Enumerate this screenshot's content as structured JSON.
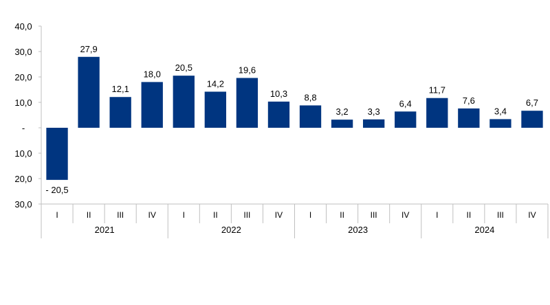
{
  "chart_data": {
    "type": "bar",
    "bar_color": "#003580",
    "ylim": [
      -30,
      40
    ],
    "yticks": [
      {
        "value": 40,
        "label": "40,0"
      },
      {
        "value": 30,
        "label": "30,0"
      },
      {
        "value": 20,
        "label": "20,0"
      },
      {
        "value": 10,
        "label": "10,0"
      },
      {
        "value": 0,
        "label": "-"
      },
      {
        "value": -10,
        "label": "10,0"
      },
      {
        "value": -20,
        "label": "20,0"
      },
      {
        "value": -30,
        "label": "30,0"
      }
    ],
    "grid": false,
    "groups": [
      {
        "year": "2021",
        "quarters": [
          "I",
          "II",
          "III",
          "IV"
        ]
      },
      {
        "year": "2022",
        "quarters": [
          "I",
          "II",
          "III",
          "IV"
        ]
      },
      {
        "year": "2023",
        "quarters": [
          "I",
          "II",
          "III",
          "IV"
        ]
      },
      {
        "year": "2024",
        "quarters": [
          "I",
          "II",
          "III",
          "IV"
        ]
      }
    ],
    "values": [
      -20.5,
      27.9,
      12.1,
      18.0,
      20.5,
      14.2,
      19.6,
      10.3,
      8.8,
      3.2,
      3.3,
      6.4,
      11.7,
      7.6,
      3.4,
      6.7
    ],
    "data_labels": [
      "- 20,5",
      "27,9",
      "12,1",
      "18,0",
      "20,5",
      "14,2",
      "19,6",
      "10,3",
      "8,8",
      "3,2",
      "3,3",
      "6,4",
      "11,7",
      "7,6",
      "3,4",
      "6,7"
    ]
  }
}
